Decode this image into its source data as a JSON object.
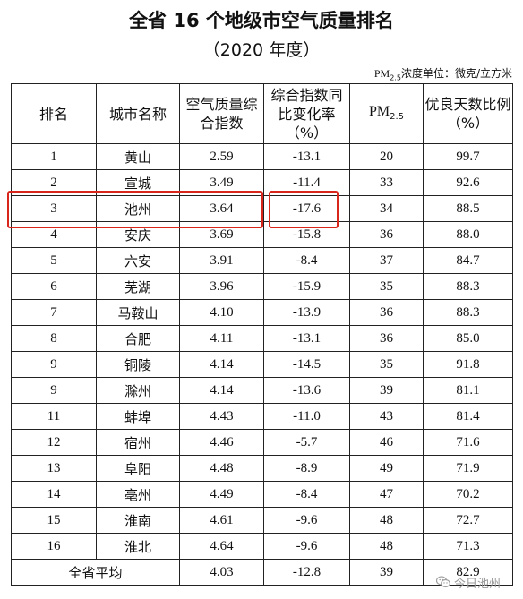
{
  "title": "全省 16 个地级市空气质量排名",
  "subtitle": "（2020 年度）",
  "unit_note": {
    "pm_base": "PM",
    "pm_sub": "2.5",
    "text": "浓度单位：微克/立方米"
  },
  "headers": {
    "rank": "排名",
    "city": "城市名称",
    "index": "空气质量综合指数",
    "change": "综合指数同比变化率（%）",
    "pm_base": "PM",
    "pm_sub": "2.5",
    "good_days": "优良天数比例（%）"
  },
  "rows": [
    {
      "rank": "1",
      "city": "黄山",
      "index": "2.59",
      "change": "-13.1",
      "pm25": "20",
      "good": "99.7"
    },
    {
      "rank": "2",
      "city": "宣城",
      "index": "3.49",
      "change": "-11.4",
      "pm25": "33",
      "good": "92.6"
    },
    {
      "rank": "3",
      "city": "池州",
      "index": "3.64",
      "change": "-17.6",
      "pm25": "34",
      "good": "88.5"
    },
    {
      "rank": "4",
      "city": "安庆",
      "index": "3.69",
      "change": "-15.8",
      "pm25": "36",
      "good": "88.0"
    },
    {
      "rank": "5",
      "city": "六安",
      "index": "3.91",
      "change": "-8.4",
      "pm25": "37",
      "good": "84.7"
    },
    {
      "rank": "6",
      "city": "芜湖",
      "index": "3.96",
      "change": "-15.9",
      "pm25": "35",
      "good": "88.3"
    },
    {
      "rank": "7",
      "city": "马鞍山",
      "index": "4.10",
      "change": "-13.9",
      "pm25": "36",
      "good": "88.3"
    },
    {
      "rank": "8",
      "city": "合肥",
      "index": "4.11",
      "change": "-13.1",
      "pm25": "36",
      "good": "85.0"
    },
    {
      "rank": "9",
      "city": "铜陵",
      "index": "4.14",
      "change": "-14.5",
      "pm25": "35",
      "good": "91.8"
    },
    {
      "rank": "9",
      "city": "滁州",
      "index": "4.14",
      "change": "-13.6",
      "pm25": "39",
      "good": "81.1"
    },
    {
      "rank": "11",
      "city": "蚌埠",
      "index": "4.43",
      "change": "-11.0",
      "pm25": "43",
      "good": "81.4"
    },
    {
      "rank": "12",
      "city": "宿州",
      "index": "4.46",
      "change": "-5.7",
      "pm25": "46",
      "good": "71.6"
    },
    {
      "rank": "13",
      "city": "阜阳",
      "index": "4.48",
      "change": "-8.9",
      "pm25": "49",
      "good": "71.9"
    },
    {
      "rank": "14",
      "city": "亳州",
      "index": "4.49",
      "change": "-8.4",
      "pm25": "47",
      "good": "70.2"
    },
    {
      "rank": "15",
      "city": "淮南",
      "index": "4.61",
      "change": "-9.6",
      "pm25": "48",
      "good": "72.7"
    },
    {
      "rank": "16",
      "city": "淮北",
      "index": "4.64",
      "change": "-9.6",
      "pm25": "48",
      "good": "71.3"
    }
  ],
  "average": {
    "label": "全省平均",
    "index": "4.03",
    "change": "-12.8",
    "pm25": "39",
    "good": "82.9"
  },
  "highlight_color": "#d9261c",
  "watermark": {
    "icon": "wechat-icon",
    "text": "今日池州"
  }
}
